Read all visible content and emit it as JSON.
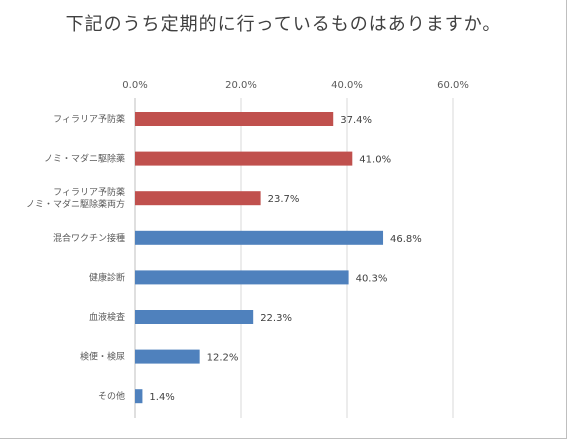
{
  "chart_data": {
    "type": "bar",
    "orientation": "horizontal",
    "title": "下記のうち定期的に行っているものはありますか。",
    "categories": [
      [
        "フィラリア予防薬"
      ],
      [
        "ノミ・マダニ駆除薬"
      ],
      [
        "フィラリア予防薬",
        "ノミ・マダニ駆除薬両方"
      ],
      [
        "混合ワクチン接種"
      ],
      [
        "健康診断"
      ],
      [
        "血液検査"
      ],
      [
        "検便・検尿"
      ],
      [
        "その他"
      ]
    ],
    "values": [
      37.4,
      41.0,
      23.7,
      46.8,
      40.3,
      22.3,
      12.2,
      1.4
    ],
    "value_labels": [
      "37.4%",
      "41.0%",
      "23.7%",
      "46.8%",
      "40.3%",
      "22.3%",
      "12.2%",
      "1.4%"
    ],
    "bar_colors": [
      "#c0504d",
      "#c0504d",
      "#c0504d",
      "#4f81bd",
      "#4f81bd",
      "#4f81bd",
      "#4f81bd",
      "#4f81bd"
    ],
    "xlim": [
      0,
      60
    ],
    "x_ticks": [
      0,
      20,
      40,
      60
    ],
    "x_tick_labels": [
      "0.0%",
      "20.0%",
      "40.0%",
      "60.0%"
    ],
    "axis_position": "top",
    "grid": true,
    "legend": false
  }
}
